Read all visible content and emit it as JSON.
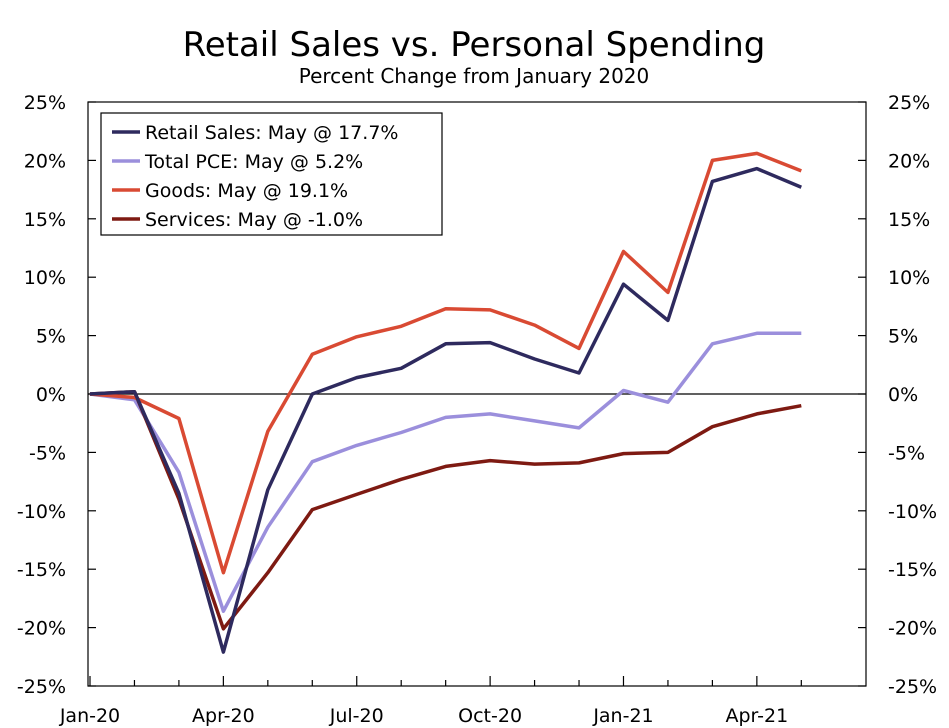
{
  "chart_data": {
    "type": "line",
    "title": "Retail Sales vs. Personal Spending",
    "subtitle": "Percent Change from January 2020",
    "xlabel": "",
    "ylabel": "",
    "x": [
      "2020-01",
      "2020-02",
      "2020-03",
      "2020-04",
      "2020-05",
      "2020-06",
      "2020-07",
      "2020-08",
      "2020-09",
      "2020-10",
      "2020-11",
      "2020-12",
      "2021-01",
      "2021-02",
      "2021-03",
      "2021-04",
      "2021-05"
    ],
    "x_tick_labels": [
      "Jan-20",
      "Apr-20",
      "Jul-20",
      "Oct-20",
      "Jan-21",
      "Apr-21"
    ],
    "x_tick_index": [
      0,
      3,
      6,
      9,
      12,
      15
    ],
    "y_ticks": [
      25,
      20,
      15,
      10,
      5,
      0,
      -5,
      -10,
      -15,
      -20,
      -25
    ],
    "y_tick_labels": [
      "25%",
      "20%",
      "15%",
      "10%",
      "5%",
      "0%",
      "-5%",
      "-10%",
      "-15%",
      "-20%",
      "-25%"
    ],
    "ylim": [
      -25,
      25
    ],
    "grid": false,
    "legend_position": "top-left",
    "series": [
      {
        "name": "Retail Sales: May @ 17.7%",
        "color": "#2e2a5e",
        "values": [
          0.0,
          0.2,
          -8.5,
          -22.1,
          -8.2,
          0.0,
          1.4,
          2.2,
          4.3,
          4.4,
          3.0,
          1.8,
          9.4,
          6.3,
          18.2,
          19.3,
          17.7
        ]
      },
      {
        "name": "Total PCE: May @ 5.2%",
        "color": "#9b8fdc",
        "values": [
          0.0,
          -0.5,
          -6.7,
          -18.6,
          -11.4,
          -5.8,
          -4.4,
          -3.3,
          -2.0,
          -1.7,
          -2.3,
          -2.9,
          0.3,
          -0.7,
          4.3,
          5.2,
          5.2
        ]
      },
      {
        "name": "Goods: May @ 19.1%",
        "color": "#d94a33",
        "values": [
          0.0,
          -0.3,
          -2.1,
          -15.3,
          -3.2,
          3.4,
          4.9,
          5.8,
          7.3,
          7.2,
          5.9,
          3.9,
          12.2,
          8.7,
          20.0,
          20.6,
          19.1
        ]
      },
      {
        "name": "Services: May @ -1.0%",
        "color": "#7e1a12",
        "values": [
          0.0,
          0.2,
          -9.0,
          -20.1,
          -15.3,
          -9.9,
          -8.6,
          -7.3,
          -6.2,
          -5.7,
          -6.0,
          -5.9,
          -5.1,
          -5.0,
          -2.8,
          -1.7,
          -1.0
        ]
      }
    ]
  }
}
